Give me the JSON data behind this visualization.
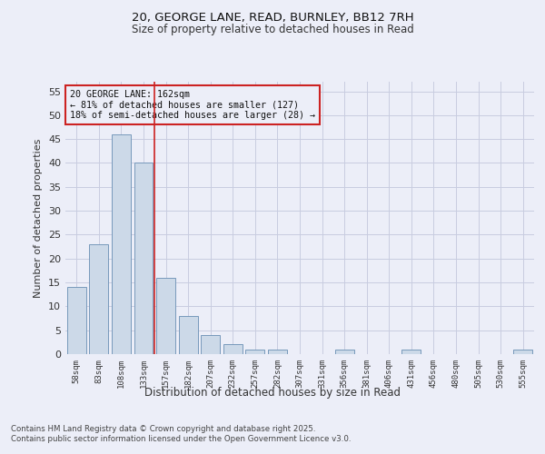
{
  "title1": "20, GEORGE LANE, READ, BURNLEY, BB12 7RH",
  "title2": "Size of property relative to detached houses in Read",
  "xlabel": "Distribution of detached houses by size in Read",
  "ylabel": "Number of detached properties",
  "footer": "Contains HM Land Registry data © Crown copyright and database right 2025.\nContains public sector information licensed under the Open Government Licence v3.0.",
  "categories": [
    "58sqm",
    "83sqm",
    "108sqm",
    "133sqm",
    "157sqm",
    "182sqm",
    "207sqm",
    "232sqm",
    "257sqm",
    "282sqm",
    "307sqm",
    "331sqm",
    "356sqm",
    "381sqm",
    "406sqm",
    "431sqm",
    "456sqm",
    "480sqm",
    "505sqm",
    "530sqm",
    "555sqm"
  ],
  "values": [
    14,
    23,
    46,
    40,
    16,
    8,
    4,
    2,
    1,
    1,
    0,
    0,
    1,
    0,
    0,
    1,
    0,
    0,
    0,
    0,
    1
  ],
  "bar_color": "#ccd9e8",
  "bar_edge_color": "#7799bb",
  "grid_color": "#c8cce0",
  "bg_color": "#eceef8",
  "vline_color": "#cc2222",
  "annotation_text": "20 GEORGE LANE: 162sqm\n← 81% of detached houses are smaller (127)\n18% of semi-detached houses are larger (28) →",
  "annotation_box_color": "#cc2222",
  "vline_pos": 3.5,
  "ylim": [
    0,
    57
  ],
  "yticks": [
    0,
    5,
    10,
    15,
    20,
    25,
    30,
    35,
    40,
    45,
    50,
    55
  ]
}
